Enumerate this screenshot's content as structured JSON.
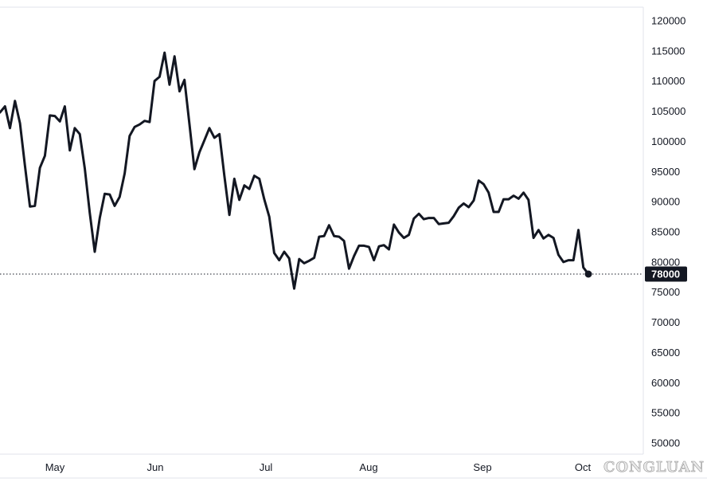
{
  "chart_data": {
    "type": "line",
    "y_ticks": [
      "120000",
      "115000",
      "110000",
      "105000",
      "100000",
      "95000",
      "90000",
      "85000",
      "80000",
      "75000",
      "70000",
      "65000",
      "60000",
      "55000",
      "50000"
    ],
    "ylim": [
      50000,
      120000
    ],
    "x_ticks": [
      "May",
      "Jun",
      "Jul",
      "Aug",
      "Sep",
      "Oct"
    ],
    "last_value": 78000,
    "last_value_label": "78000",
    "series": [
      {
        "values": [
          104800,
          105800,
          102200,
          106700,
          103000,
          96000,
          89200,
          89300,
          95600,
          97600,
          104300,
          104200,
          103300,
          105800,
          98500,
          102200,
          101200,
          95500,
          88200,
          81700,
          87300,
          91300,
          91200,
          89300,
          90800,
          94700,
          100900,
          102400,
          102800,
          103400,
          103200,
          110000,
          110700,
          114700,
          109400,
          114100,
          108300,
          110200,
          102800,
          95400,
          98200,
          100200,
          102200,
          100600,
          101200,
          94300,
          87800,
          93800,
          90300,
          92700,
          92100,
          94300,
          93800,
          90400,
          87500,
          81500,
          80300,
          81700,
          80600,
          75600,
          80500,
          79800,
          80200,
          80700,
          84200,
          84300,
          86100,
          84300,
          84200,
          83500,
          78900,
          81000,
          82700,
          82700,
          82500,
          80300,
          82600,
          82800,
          82100,
          86200,
          84900,
          84000,
          84500,
          87200,
          88000,
          87100,
          87300,
          87300,
          86300,
          86400,
          86500,
          87600,
          89000,
          89700,
          89100,
          90200,
          93500,
          92900,
          91500,
          88300,
          88300,
          90400,
          90400,
          91000,
          90500,
          91500,
          90300,
          84000,
          85300,
          83900,
          84500,
          84000,
          81200,
          80000,
          80300,
          80300,
          85300,
          79100,
          78000
        ]
      }
    ]
  },
  "colors": {
    "line": "#131722",
    "last_label_bg": "#131722",
    "grid_line": "#e0e3eb",
    "dotted_line": "#131722"
  },
  "watermark": {
    "text": "CONGLUAN"
  }
}
